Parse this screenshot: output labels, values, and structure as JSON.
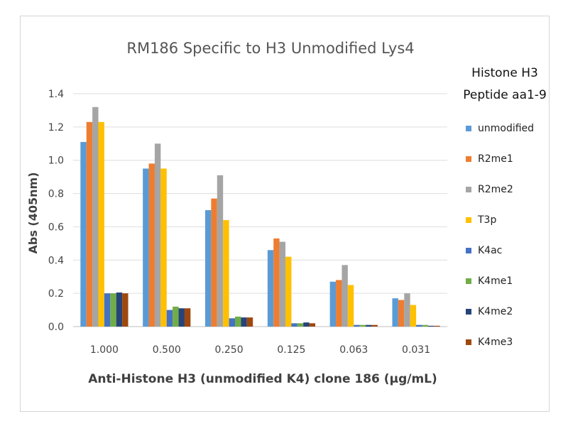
{
  "chart_data": {
    "type": "bar",
    "title": "RM186 Specific to H3 Unmodified Lys4",
    "xlabel": "Anti-Histone H3 (unmodified K4) clone 186 (µg/mL)",
    "ylabel": "Abs (405nm)",
    "ylim": [
      0,
      1.4
    ],
    "yticks": [
      "0.0",
      "0.2",
      "0.4",
      "0.6",
      "0.8",
      "1.0",
      "1.2",
      "1.4"
    ],
    "grid": true,
    "legend_position": "right",
    "legend_title": [
      "Histone H3",
      "Peptide aa1-9"
    ],
    "categories": [
      "1.000",
      "0.500",
      "0.250",
      "0.125",
      "0.063",
      "0.031"
    ],
    "series": [
      {
        "name": "unmodified",
        "color": "#5b9bd5",
        "values": [
          1.11,
          0.95,
          0.7,
          0.46,
          0.27,
          0.17
        ]
      },
      {
        "name": "R2me1",
        "color": "#ed7d31",
        "values": [
          1.23,
          0.98,
          0.77,
          0.53,
          0.28,
          0.16
        ]
      },
      {
        "name": "R2me2",
        "color": "#a5a5a5",
        "values": [
          1.32,
          1.1,
          0.91,
          0.51,
          0.37,
          0.2
        ]
      },
      {
        "name": "T3p",
        "color": "#ffc000",
        "values": [
          1.23,
          0.95,
          0.64,
          0.42,
          0.25,
          0.13
        ]
      },
      {
        "name": "K4ac",
        "color": "#4472c4",
        "values": [
          0.2,
          0.1,
          0.05,
          0.02,
          0.01,
          0.01
        ]
      },
      {
        "name": "K4me1",
        "color": "#70ad47",
        "values": [
          0.2,
          0.12,
          0.06,
          0.02,
          0.01,
          0.01
        ]
      },
      {
        "name": "K4me2",
        "color": "#264478",
        "values": [
          0.205,
          0.11,
          0.055,
          0.025,
          0.01,
          0.005
        ]
      },
      {
        "name": "K4me3",
        "color": "#9e480e",
        "values": [
          0.2,
          0.11,
          0.055,
          0.02,
          0.01,
          0.005
        ]
      }
    ]
  }
}
